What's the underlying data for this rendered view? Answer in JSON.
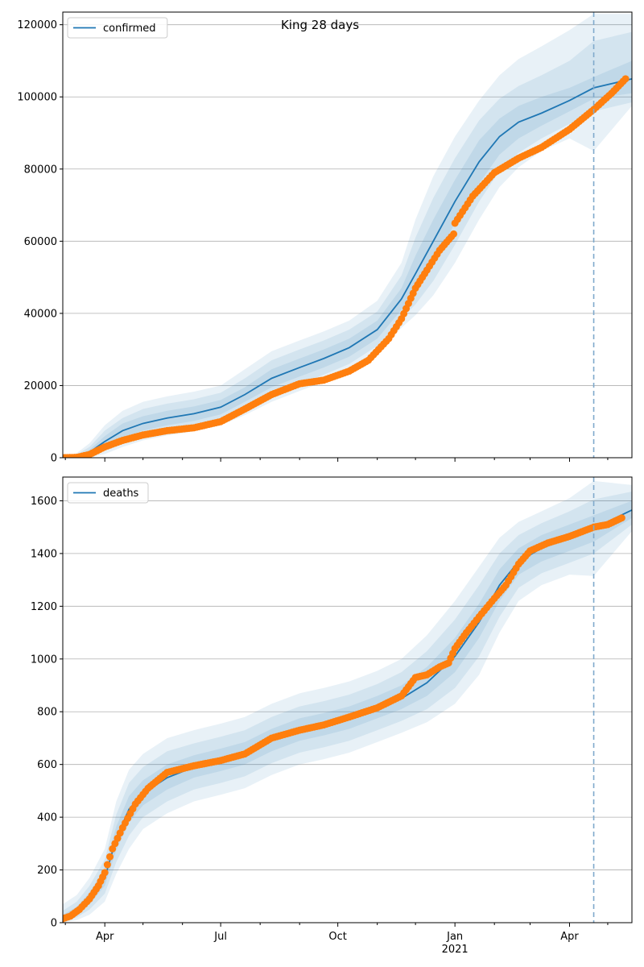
{
  "chart_data": [
    {
      "type": "line",
      "title": "King 28 days",
      "legend": {
        "label": "confirmed",
        "placement": "top-left"
      },
      "xlim": [
        "2020-02-28",
        "2021-05-20"
      ],
      "ylim": [
        0,
        123500
      ],
      "yticks": [
        0,
        20000,
        40000,
        60000,
        80000,
        100000,
        120000
      ],
      "ytick_labels": [
        "0",
        "20000",
        "40000",
        "60000",
        "80000",
        "100000",
        "120000"
      ],
      "grid": "y",
      "forecast_start": "2021-04-20",
      "colors": {
        "line": "#1f77b4",
        "band": "#1f77b4",
        "points": "#ff7f0e",
        "vline": "#7fa9cc"
      },
      "model": {
        "dates": [
          "2020-02-28",
          "2020-03-10",
          "2020-03-20",
          "2020-04-01",
          "2020-04-15",
          "2020-05-01",
          "2020-05-20",
          "2020-06-10",
          "2020-07-01",
          "2020-07-20",
          "2020-08-10",
          "2020-09-01",
          "2020-09-20",
          "2020-10-10",
          "2020-11-01",
          "2020-11-20",
          "2020-12-01",
          "2020-12-15",
          "2021-01-01",
          "2021-01-20",
          "2021-02-05",
          "2021-02-20",
          "2021-03-10",
          "2021-04-01",
          "2021-04-20",
          "2021-05-20"
        ],
        "values": [
          0,
          300,
          1500,
          4500,
          7500,
          9500,
          11000,
          12200,
          14000,
          17500,
          22000,
          25000,
          27500,
          30500,
          35500,
          44000,
          51000,
          60000,
          71000,
          82000,
          89000,
          93000,
          95500,
          99000,
          102500,
          105000
        ],
        "bands": [
          {
            "lower": [
              0,
              100,
              800,
              3000,
              5500,
              7500,
              9000,
              10200,
              12000,
              15500,
              19500,
              22500,
              25000,
              28000,
              33000,
              41000,
              46000,
              54000,
              65000,
              76000,
              84000,
              88500,
              92000,
              96000,
              99500,
              101000
            ],
            "upper": [
              0,
              500,
              2200,
              6000,
              9500,
              11500,
              13000,
              14200,
              16000,
              19500,
              24500,
              27500,
              30000,
              33000,
              38000,
              47000,
              56000,
              66000,
              77000,
              88000,
              94000,
              97500,
              100000,
              102500,
              105500,
              110000
            ]
          },
          {
            "lower": [
              0,
              0,
              400,
              2000,
              4200,
              6000,
              7500,
              8700,
              10500,
              13500,
              17500,
              20500,
              23000,
              26000,
              31000,
              38500,
              42500,
              49000,
              59000,
              71000,
              79500,
              84500,
              88500,
              92500,
              96000,
              98500
            ],
            "upper": [
              0,
              900,
              3000,
              7500,
              11000,
              13500,
              15000,
              16200,
              18000,
              22000,
              27000,
              30000,
              32500,
              35500,
              40500,
              50500,
              61000,
              72000,
              83000,
              93500,
              99500,
              103000,
              106000,
              110000,
              115500,
              118000
            ]
          },
          {
            "lower": [
              0,
              0,
              100,
              1000,
              3000,
              4800,
              6200,
              7300,
              9000,
              11800,
              15500,
              18500,
              21000,
              24000,
              29000,
              36000,
              39500,
              45000,
              54000,
              66000,
              75000,
              80500,
              85000,
              88500,
              85000,
              97500
            ],
            "upper": [
              0,
              1300,
              4000,
              9000,
              13000,
              15500,
              17000,
              18300,
              20000,
              24500,
              29500,
              32500,
              35000,
              38000,
              43500,
              54000,
              66000,
              78000,
              89000,
              99000,
              106000,
              110500,
              114000,
              118500,
              123000,
              123000
            ]
          }
        ]
      },
      "observed": {
        "dates": [
          "2020-02-28",
          "2020-03-10",
          "2020-03-20",
          "2020-04-01",
          "2020-04-15",
          "2020-05-01",
          "2020-05-20",
          "2020-06-10",
          "2020-07-01",
          "2020-07-20",
          "2020-08-10",
          "2020-09-01",
          "2020-09-20",
          "2020-10-10",
          "2020-10-25",
          "2020-11-10",
          "2020-11-20",
          "2020-12-01",
          "2020-12-10",
          "2020-12-20",
          "2020-12-31",
          "2021-01-01",
          "2021-01-15",
          "2021-02-01",
          "2021-02-20",
          "2021-03-10",
          "2021-04-01",
          "2021-04-20",
          "2021-05-04",
          "2021-05-15"
        ],
        "values": [
          0,
          100,
          900,
          3000,
          4800,
          6300,
          7500,
          8300,
          10000,
          13500,
          17500,
          20500,
          21500,
          24000,
          27000,
          33000,
          38500,
          47000,
          52000,
          57500,
          62000,
          65000,
          72500,
          79000,
          83000,
          86000,
          91000,
          96500,
          101000,
          105000
        ]
      }
    },
    {
      "type": "line",
      "legend": {
        "label": "deaths",
        "placement": "top-left"
      },
      "xlim": [
        "2020-02-28",
        "2021-05-20"
      ],
      "ylim": [
        0,
        1690
      ],
      "yticks": [
        0,
        200,
        400,
        600,
        800,
        1000,
        1200,
        1400,
        1600
      ],
      "ytick_labels": [
        "0",
        "200",
        "400",
        "600",
        "800",
        "1000",
        "1200",
        "1400",
        "1600"
      ],
      "xticks": [
        "2020-04-01",
        "2020-07-01",
        "2020-10-01",
        "2021-01-01",
        "2021-04-01"
      ],
      "xtick_labels": [
        "Apr",
        "Jul",
        "Oct",
        "Jan",
        "Apr"
      ],
      "xtick_year": {
        "tick": "2021-01-01",
        "label": "2021"
      },
      "grid": "y",
      "forecast_start": "2021-04-20",
      "colors": {
        "line": "#1f77b4",
        "band": "#1f77b4",
        "points": "#ff7f0e",
        "vline": "#7fa9cc"
      },
      "model": {
        "dates": [
          "2020-02-28",
          "2020-03-10",
          "2020-03-20",
          "2020-04-01",
          "2020-04-10",
          "2020-04-20",
          "2020-05-01",
          "2020-05-20",
          "2020-06-10",
          "2020-07-01",
          "2020-07-20",
          "2020-08-10",
          "2020-09-01",
          "2020-09-20",
          "2020-10-10",
          "2020-11-01",
          "2020-11-20",
          "2020-12-10",
          "2021-01-01",
          "2021-01-20",
          "2021-02-05",
          "2021-02-20",
          "2021-03-10",
          "2021-04-01",
          "2021-04-20",
          "2021-05-20"
        ],
        "values": [
          20,
          45,
          90,
          170,
          320,
          430,
          490,
          550,
          590,
          615,
          640,
          690,
          730,
          750,
          775,
          815,
          850,
          910,
          1010,
          1140,
          1280,
          1370,
          1420,
          1460,
          1495,
          1565
        ],
        "bands": [
          {
            "lower": [
              10,
              30,
              70,
              140,
              275,
              380,
              445,
              505,
              550,
              575,
              600,
              650,
              690,
              710,
              735,
              775,
              810,
              860,
              950,
              1080,
              1220,
              1320,
              1370,
              1410,
              1445,
              1535
            ],
            "upper": [
              30,
              60,
              115,
              205,
              365,
              480,
              540,
              600,
              635,
              660,
              685,
              735,
              775,
              795,
              820,
              860,
              900,
              970,
              1080,
              1210,
              1340,
              1420,
              1470,
              1510,
              1545,
              1600
            ]
          },
          {
            "lower": [
              5,
              20,
              50,
              110,
              230,
              330,
              400,
              460,
              505,
              530,
              555,
              605,
              645,
              665,
              690,
              730,
              765,
              810,
              890,
              1010,
              1160,
              1270,
              1325,
              1365,
              1400,
              1510
            ],
            "upper": [
              45,
              80,
              140,
              240,
              410,
              530,
              590,
              650,
              680,
              705,
              730,
              780,
              820,
              840,
              865,
              905,
              950,
              1030,
              1150,
              1280,
              1400,
              1470,
              1515,
              1560,
              1605,
              1635
            ]
          },
          {
            "lower": [
              0,
              10,
              30,
              80,
              185,
              280,
              355,
              415,
              460,
              485,
              510,
              560,
              600,
              620,
              645,
              685,
              720,
              760,
              830,
              940,
              1100,
              1220,
              1280,
              1320,
              1315,
              1485
            ],
            "upper": [
              70,
              105,
              170,
              280,
              460,
              580,
              640,
              700,
              730,
              755,
              780,
              830,
              870,
              890,
              915,
              955,
              1000,
              1090,
              1220,
              1350,
              1460,
              1520,
              1560,
              1610,
              1675,
              1660
            ]
          }
        ]
      },
      "observed": {
        "dates": [
          "2020-02-28",
          "2020-03-05",
          "2020-03-12",
          "2020-03-20",
          "2020-03-27",
          "2020-04-01",
          "2020-04-07",
          "2020-04-15",
          "2020-04-25",
          "2020-05-05",
          "2020-05-20",
          "2020-06-10",
          "2020-07-01",
          "2020-07-20",
          "2020-08-10",
          "2020-09-01",
          "2020-09-20",
          "2020-10-10",
          "2020-11-01",
          "2020-11-20",
          "2020-12-01",
          "2020-12-10",
          "2020-12-20",
          "2020-12-27",
          "2021-01-01",
          "2021-01-10",
          "2021-01-20",
          "2021-02-01",
          "2021-02-10",
          "2021-02-20",
          "2021-03-01",
          "2021-03-15",
          "2021-04-01",
          "2021-04-20",
          "2021-05-01",
          "2021-05-12"
        ],
        "values": [
          15,
          25,
          50,
          90,
          140,
          190,
          280,
          360,
          450,
          510,
          570,
          595,
          615,
          640,
          700,
          730,
          750,
          780,
          815,
          860,
          930,
          940,
          970,
          985,
          1040,
          1100,
          1160,
          1230,
          1280,
          1360,
          1410,
          1440,
          1465,
          1500,
          1510,
          1535
        ]
      }
    }
  ]
}
